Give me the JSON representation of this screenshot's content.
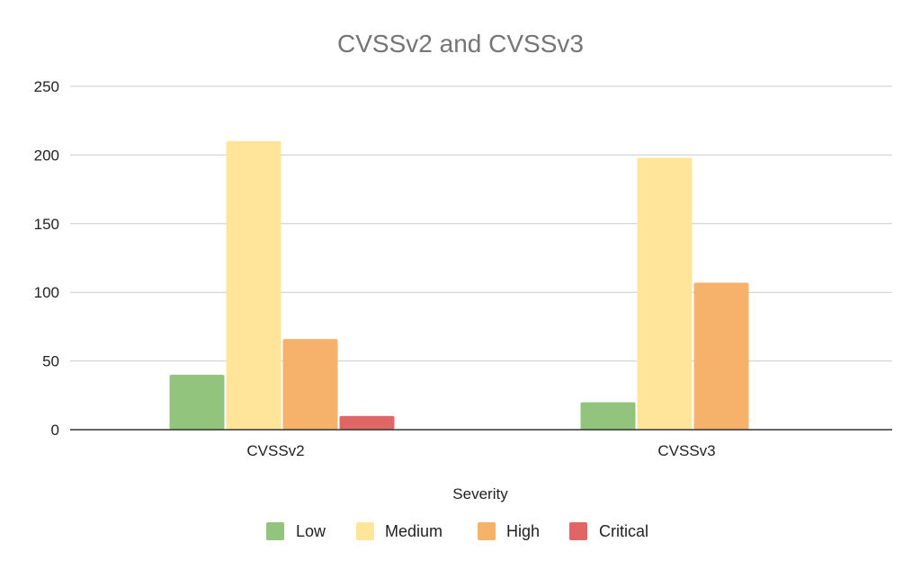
{
  "chart_data": {
    "type": "bar",
    "title": "CVSSv2 and CVSSv3",
    "xlabel": "Severity",
    "ylabel": "",
    "categories": [
      "CVSSv2",
      "CVSSv3"
    ],
    "ylim": [
      0,
      250
    ],
    "yticks": [
      0,
      50,
      100,
      150,
      200,
      250
    ],
    "grid": true,
    "legend_position": "bottom",
    "series": [
      {
        "name": "Low",
        "color": "#93c47d",
        "values": [
          40,
          20
        ]
      },
      {
        "name": "Medium",
        "color": "#ffe599",
        "values": [
          210,
          198
        ]
      },
      {
        "name": "High",
        "color": "#f6b26b",
        "values": [
          66,
          107
        ]
      },
      {
        "name": "Critical",
        "color": "#e06666",
        "values": [
          10,
          0
        ]
      }
    ]
  }
}
